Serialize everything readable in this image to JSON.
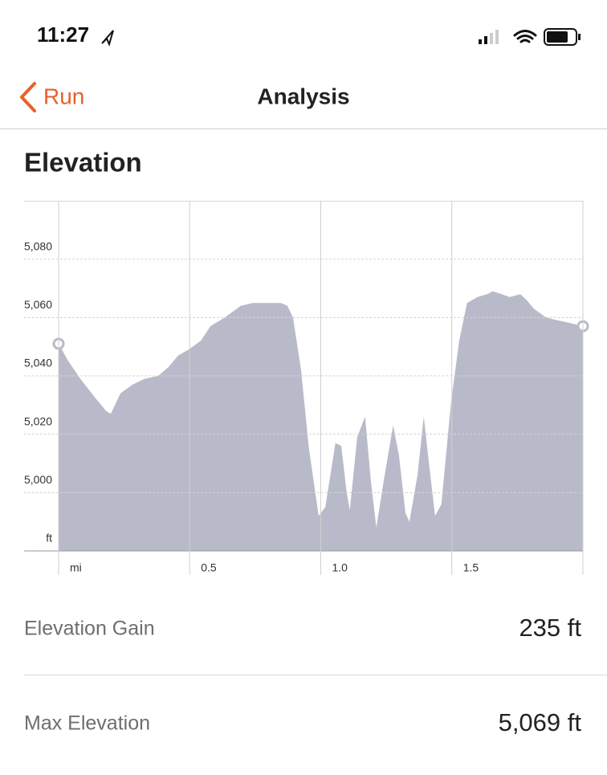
{
  "status_bar": {
    "time": "11:27"
  },
  "nav": {
    "back": "Run",
    "title": "Analysis"
  },
  "section_title": "Elevation",
  "chart_data": {
    "type": "area",
    "color": "#b9bac9",
    "grid": true,
    "x": [
      0,
      0.037,
      0.083,
      0.144,
      0.181,
      0.199,
      0.236,
      0.282,
      0.328,
      0.38,
      0.419,
      0.456,
      0.496,
      0.542,
      0.579,
      0.634,
      0.664,
      0.695,
      0.741,
      0.802,
      0.848,
      0.873,
      0.894,
      0.925,
      0.955,
      0.992,
      1.017,
      1.056,
      1.078,
      1.099,
      1.111,
      1.139,
      1.169,
      1.191,
      1.212,
      1.24,
      1.276,
      1.298,
      1.323,
      1.338,
      1.369,
      1.393,
      1.414,
      1.436,
      1.46,
      1.497,
      1.528,
      1.558,
      1.598,
      1.635,
      1.656,
      1.69,
      1.721,
      1.761,
      1.785,
      1.813,
      1.859,
      1.905,
      1.957,
      2.0
    ],
    "values": [
      5051,
      5045,
      5039,
      5032,
      5028,
      5027,
      5034,
      5037,
      5039,
      5040,
      5043,
      5047,
      5049,
      5052,
      5057,
      5060,
      5062,
      5064,
      5065,
      5065,
      5065,
      5064,
      5060,
      5042,
      5015,
      4992,
      4995,
      5017,
      5016,
      5000,
      4994,
      5019,
      5026,
      5004,
      4988,
      5004,
      5023,
      5013,
      4993,
      4990,
      5006,
      5026,
      5009,
      4992,
      4996,
      5031,
      5052,
      5065,
      5067,
      5068,
      5069,
      5068,
      5067,
      5068,
      5066,
      5063,
      5060,
      5059,
      5058,
      5057
    ],
    "xlim": [
      0,
      2
    ],
    "ylim": [
      4980,
      5100
    ],
    "xticks": [
      {
        "value": 0,
        "label": "mi"
      },
      0.5,
      {
        "value": 1,
        "label": "1.0"
      },
      1.5,
      2
    ],
    "yticks": [
      {
        "value": 4980,
        "label": "ft"
      },
      {
        "value": 5000,
        "label": "5,000"
      },
      {
        "value": 5020,
        "label": "5,020"
      },
      {
        "value": 5040,
        "label": "5,040"
      },
      {
        "value": 5060,
        "label": "5,060"
      },
      {
        "value": 5080,
        "label": "5,080"
      }
    ]
  },
  "stats": [
    {
      "label": "Elevation Gain",
      "value": "235 ft"
    },
    {
      "label": "Max Elevation",
      "value": "5,069 ft"
    }
  ]
}
